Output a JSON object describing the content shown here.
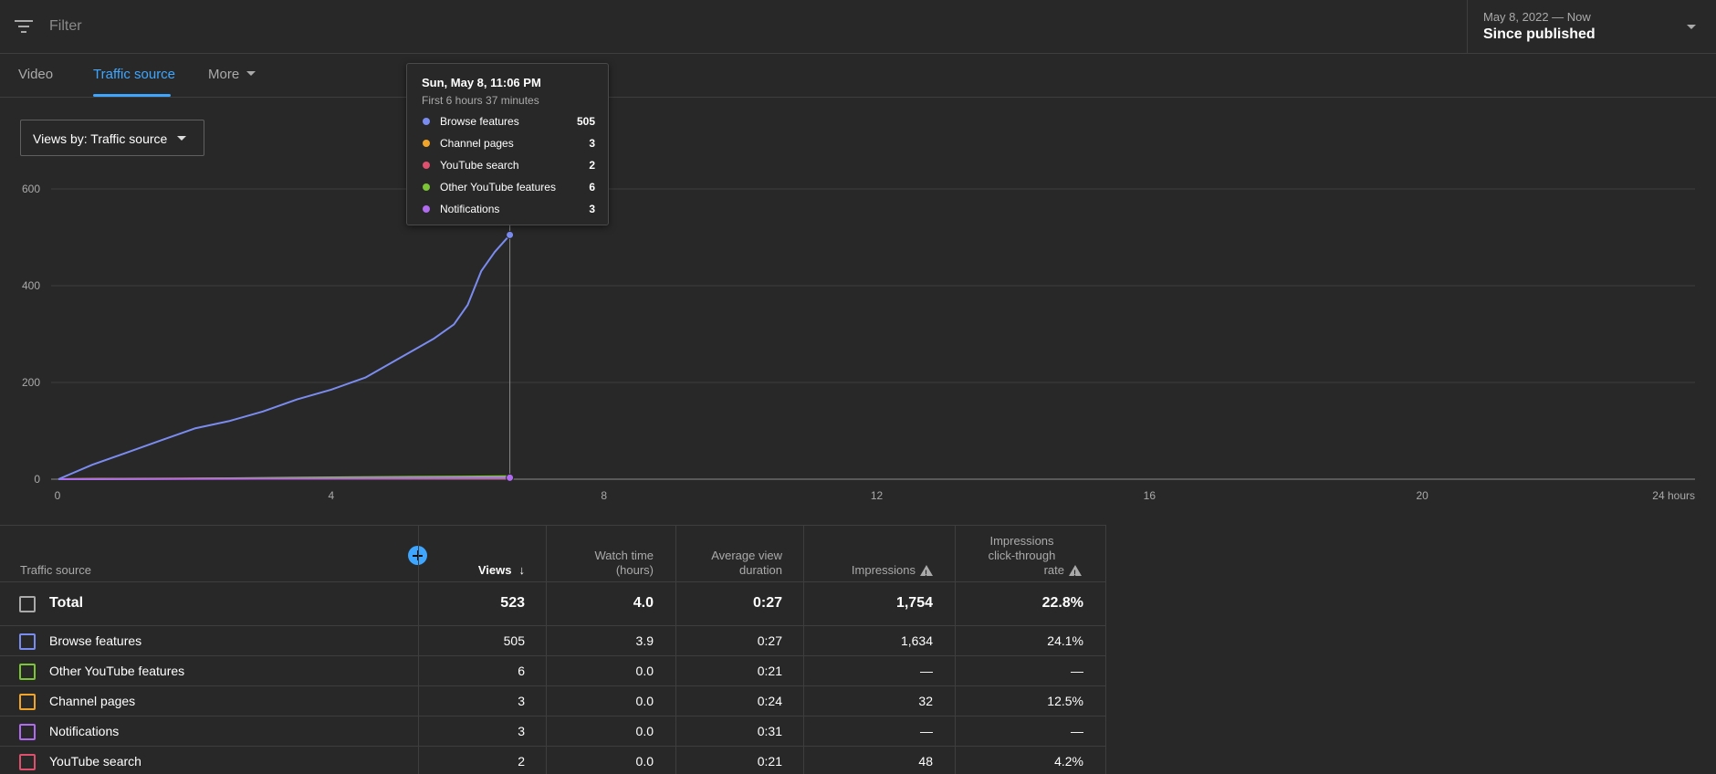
{
  "filter": {
    "placeholder": "Filter",
    "icon": "filter-icon"
  },
  "date_picker": {
    "range": "May 8, 2022 — Now",
    "label": "Since published"
  },
  "tabs": [
    {
      "label": "Video",
      "active": false
    },
    {
      "label": "Traffic source",
      "active": true
    },
    {
      "label": "More",
      "active": false
    }
  ],
  "views_by": {
    "label": "Views by: Traffic source"
  },
  "tooltip": {
    "date": "Sun, May 8, 11:06 PM",
    "subtitle": "First 6 hours 37 minutes",
    "rows": [
      {
        "name": "Browse features",
        "value": "505",
        "color": "#7b8cf0"
      },
      {
        "name": "Channel pages",
        "value": "3",
        "color": "#f0a52a"
      },
      {
        "name": "YouTube search",
        "value": "2",
        "color": "#e0506e"
      },
      {
        "name": "Other YouTube features",
        "value": "6",
        "color": "#7cc534"
      },
      {
        "name": "Notifications",
        "value": "3",
        "color": "#b06bf0"
      }
    ]
  },
  "chart_data": {
    "type": "line",
    "xlabel": "",
    "ylabel": "",
    "xlim": [
      0,
      24
    ],
    "ylim": [
      0,
      600
    ],
    "x_ticks": [
      "0",
      "4",
      "8",
      "12",
      "16",
      "20",
      "24 hours"
    ],
    "y_ticks": [
      "0",
      "200",
      "400",
      "600"
    ],
    "grid": true,
    "hover_x": 6.62,
    "series": [
      {
        "name": "Browse features",
        "color": "#7b8cf0",
        "x": [
          0,
          0.5,
          1,
          1.5,
          2,
          2.5,
          3,
          3.5,
          4,
          4.5,
          5,
          5.5,
          5.8,
          6.0,
          6.2,
          6.4,
          6.62
        ],
        "y": [
          0,
          30,
          55,
          80,
          105,
          120,
          140,
          165,
          185,
          210,
          250,
          290,
          320,
          360,
          430,
          470,
          505
        ]
      },
      {
        "name": "Channel pages",
        "color": "#f0a52a",
        "x": [
          0,
          0.6,
          3.4,
          6.62
        ],
        "y": [
          0,
          1,
          2,
          3
        ]
      },
      {
        "name": "YouTube search",
        "color": "#e0506e",
        "x": [
          0,
          3,
          6.62
        ],
        "y": [
          0,
          1,
          2
        ]
      },
      {
        "name": "Other YouTube features",
        "color": "#7cc534",
        "x": [
          0,
          1.8,
          3.4,
          5.2,
          6.62
        ],
        "y": [
          0,
          1,
          3,
          5,
          6
        ]
      },
      {
        "name": "Notifications",
        "color": "#b06bf0",
        "x": [
          0,
          2,
          4.5,
          6.62
        ],
        "y": [
          0,
          1,
          2,
          3
        ]
      }
    ]
  },
  "table": {
    "headers": {
      "source": "Traffic source",
      "views": "Views",
      "watch_time": [
        "Watch time",
        "(hours)"
      ],
      "avg_duration": [
        "Average view",
        "duration"
      ],
      "impressions": "Impressions",
      "ctr": [
        "Impressions",
        "click-through",
        "rate"
      ]
    },
    "total": {
      "name": "Total",
      "views": "523",
      "watch_time": "4.0",
      "avg_duration": "0:27",
      "impressions": "1,754",
      "ctr": "22.8%"
    },
    "rows": [
      {
        "name": "Browse features",
        "color": "#7b8cf0",
        "views": "505",
        "watch_time": "3.9",
        "avg_duration": "0:27",
        "impressions": "1,634",
        "ctr": "24.1%"
      },
      {
        "name": "Other YouTube features",
        "color": "#7cc534",
        "views": "6",
        "watch_time": "0.0",
        "avg_duration": "0:21",
        "impressions": "—",
        "ctr": "—"
      },
      {
        "name": "Channel pages",
        "color": "#f0a52a",
        "views": "3",
        "watch_time": "0.0",
        "avg_duration": "0:24",
        "impressions": "32",
        "ctr": "12.5%"
      },
      {
        "name": "Notifications",
        "color": "#b06bf0",
        "views": "3",
        "watch_time": "0.0",
        "avg_duration": "0:31",
        "impressions": "—",
        "ctr": "—"
      },
      {
        "name": "YouTube search",
        "color": "#e0506e",
        "views": "2",
        "watch_time": "0.0",
        "avg_duration": "0:21",
        "impressions": "48",
        "ctr": "4.2%"
      }
    ]
  }
}
